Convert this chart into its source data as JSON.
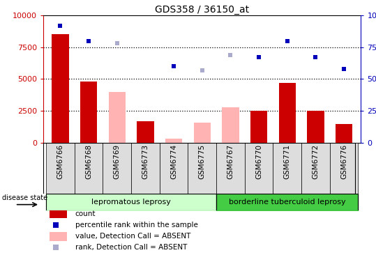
{
  "title": "GDS358 / 36150_at",
  "samples": [
    "GSM6766",
    "GSM6768",
    "GSM6769",
    "GSM6773",
    "GSM6774",
    "GSM6775",
    "GSM6767",
    "GSM6770",
    "GSM6771",
    "GSM6772",
    "GSM6776"
  ],
  "count_values": [
    8500,
    4800,
    0,
    1700,
    0,
    0,
    0,
    2500,
    4700,
    2500,
    1500
  ],
  "count_absent_values": [
    0,
    0,
    4000,
    0,
    300,
    1600,
    2800,
    0,
    0,
    0,
    0
  ],
  "percentile_present": [
    92,
    80,
    0,
    0,
    60,
    0,
    0,
    67,
    80,
    67,
    58
  ],
  "percentile_absent": [
    0,
    0,
    78,
    0,
    0,
    57,
    69,
    0,
    0,
    0,
    0
  ],
  "left_ylim": [
    0,
    10000
  ],
  "right_ylim": [
    0,
    100
  ],
  "left_yticks": [
    0,
    2500,
    5000,
    7500,
    10000
  ],
  "right_yticks": [
    0,
    25,
    50,
    75,
    100
  ],
  "group1_label": "lepromatous leprosy",
  "group2_label": "borderline tuberculoid leprosy",
  "group1_count": 6,
  "group2_count": 5,
  "disease_state_label": "disease state",
  "count_color": "#cc0000",
  "count_absent_color": "#ffb3b3",
  "percentile_color": "#0000bb",
  "percentile_absent_color": "#aaaacc",
  "group1_bg": "#ccffcc",
  "group2_bg": "#44cc44",
  "xtick_bg": "#dddddd",
  "legend_items": [
    {
      "label": "count",
      "color": "#cc0000",
      "type": "rect"
    },
    {
      "label": "percentile rank within the sample",
      "color": "#0000bb",
      "type": "square"
    },
    {
      "label": "value, Detection Call = ABSENT",
      "color": "#ffb3b3",
      "type": "rect"
    },
    {
      "label": "rank, Detection Call = ABSENT",
      "color": "#aaaacc",
      "type": "square"
    }
  ]
}
